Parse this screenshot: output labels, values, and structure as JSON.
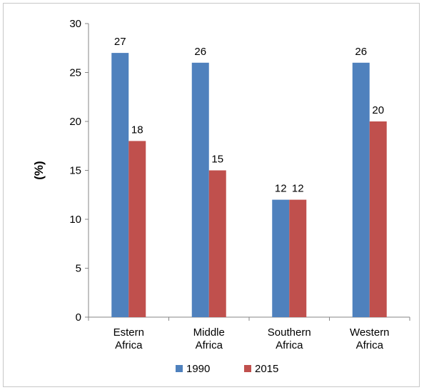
{
  "chart_data": {
    "type": "bar",
    "title": "",
    "xlabel": "",
    "ylabel": "(%)",
    "ylim": [
      0,
      30
    ],
    "yticks": [
      0,
      5,
      10,
      15,
      20,
      25,
      30
    ],
    "categories": [
      [
        "Estern",
        "Africa"
      ],
      [
        "Middle",
        "Africa"
      ],
      [
        "Southern",
        "Africa"
      ],
      [
        "Western",
        "Africa"
      ]
    ],
    "series": [
      {
        "name": "1990",
        "color": "#4f81bd",
        "values": [
          27,
          26,
          12,
          26
        ]
      },
      {
        "name": "2015",
        "color": "#c0504d",
        "values": [
          18,
          15,
          12,
          20
        ]
      }
    ],
    "grid": false,
    "legend": "bottom",
    "data_labels": true
  }
}
